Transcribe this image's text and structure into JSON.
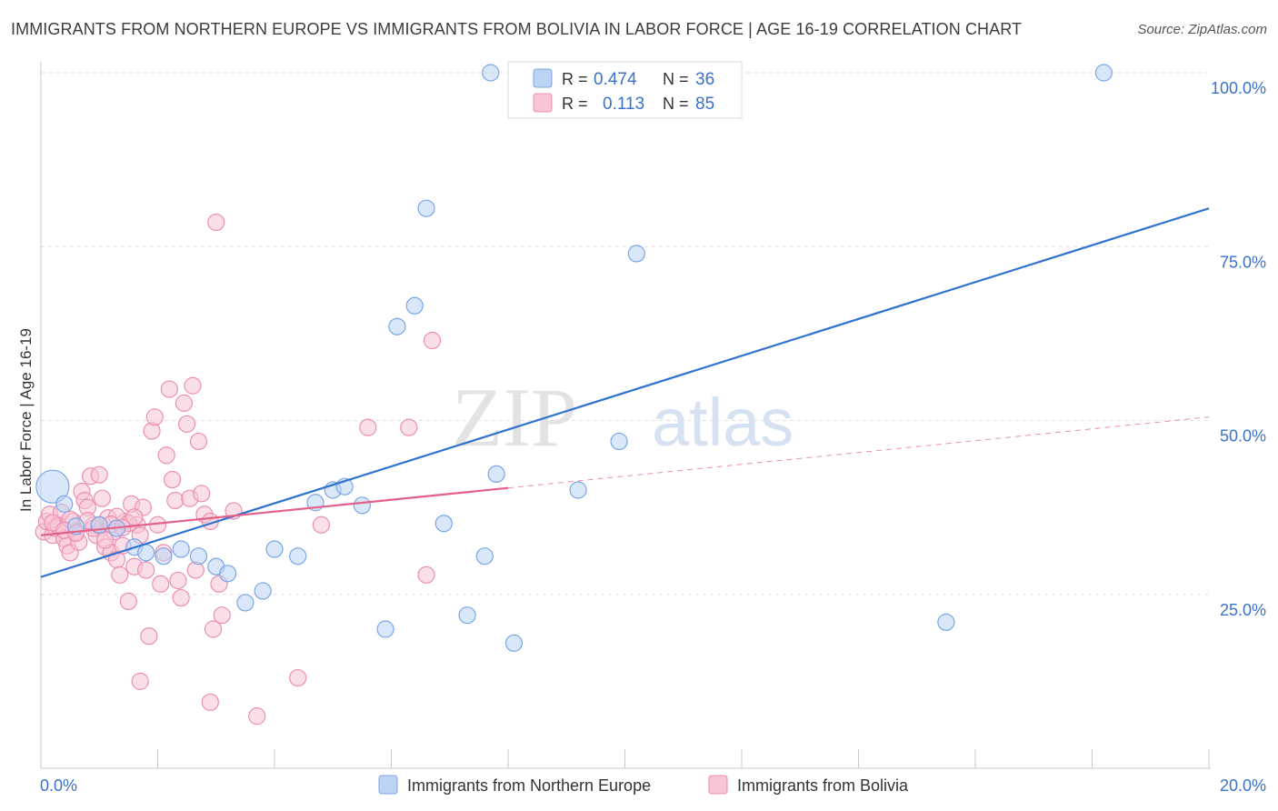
{
  "header": {
    "title": "IMMIGRANTS FROM NORTHERN EUROPE VS IMMIGRANTS FROM BOLIVIA IN LABOR FORCE | AGE 16-19 CORRELATION CHART",
    "source": "Source: ZipAtlas.com"
  },
  "watermark": {
    "part1": "ZIP",
    "part2": "atlas"
  },
  "colors": {
    "blue": "#7aa6e6",
    "blue_fill": "#bcd3f3",
    "blue_line": "#2f72d0",
    "pink": "#ec8fae",
    "pink_fill": "#f7c5d5",
    "pink_line": "#e2608a",
    "value_text": "#3a72c8"
  },
  "legend_top": {
    "r_label": "R =",
    "n_label": "N =",
    "rows": [
      {
        "r": "0.474",
        "n": "36"
      },
      {
        "r": "0.113",
        "n": "85"
      }
    ]
  },
  "chart_data": {
    "type": "scatter",
    "title": "IMMIGRANTS FROM NORTHERN EUROPE VS IMMIGRANTS FROM BOLIVIA IN LABOR FORCE | AGE 16-19 CORRELATION CHART",
    "xlabel": "",
    "ylabel": "In Labor Force | Age 16-19",
    "xlim": [
      0,
      20
    ],
    "ylim": [
      0,
      102
    ],
    "x_tick_labels": [
      "0.0%",
      "20.0%"
    ],
    "y_tick_labels": [
      "25.0%",
      "50.0%",
      "75.0%",
      "100.0%"
    ],
    "y_ticks": [
      25,
      50,
      75,
      100
    ],
    "grid": true,
    "legend": "bottom",
    "series": [
      {
        "name": "Immigrants from Northern Europe",
        "R": 0.474,
        "N": 36,
        "trend": {
          "x": [
            0,
            20
          ],
          "y": [
            27.5,
            80.5
          ]
        },
        "points": [
          {
            "x": 0.2,
            "y": 40.5,
            "big": true
          },
          {
            "x": 0.4,
            "y": 38.0
          },
          {
            "x": 1.0,
            "y": 35.0
          },
          {
            "x": 1.3,
            "y": 34.5
          },
          {
            "x": 0.6,
            "y": 34.8
          },
          {
            "x": 1.6,
            "y": 31.8
          },
          {
            "x": 1.8,
            "y": 31.0
          },
          {
            "x": 2.1,
            "y": 30.5
          },
          {
            "x": 2.4,
            "y": 31.5
          },
          {
            "x": 2.7,
            "y": 30.5
          },
          {
            "x": 3.0,
            "y": 29.0
          },
          {
            "x": 3.2,
            "y": 28.0
          },
          {
            "x": 3.5,
            "y": 23.8
          },
          {
            "x": 3.8,
            "y": 25.5
          },
          {
            "x": 4.0,
            "y": 31.5
          },
          {
            "x": 4.4,
            "y": 30.5
          },
          {
            "x": 4.7,
            "y": 38.2
          },
          {
            "x": 5.0,
            "y": 40.0
          },
          {
            "x": 5.2,
            "y": 40.5
          },
          {
            "x": 5.5,
            "y": 37.8
          },
          {
            "x": 5.9,
            "y": 20.0
          },
          {
            "x": 6.1,
            "y": 63.5
          },
          {
            "x": 6.4,
            "y": 66.5
          },
          {
            "x": 6.6,
            "y": 80.5
          },
          {
            "x": 6.9,
            "y": 35.2
          },
          {
            "x": 7.3,
            "y": 22.0
          },
          {
            "x": 7.6,
            "y": 30.5
          },
          {
            "x": 7.8,
            "y": 42.3
          },
          {
            "x": 8.1,
            "y": 18.0
          },
          {
            "x": 7.7,
            "y": 100.0
          },
          {
            "x": 9.2,
            "y": 40.0
          },
          {
            "x": 9.9,
            "y": 47.0
          },
          {
            "x": 10.2,
            "y": 74.0
          },
          {
            "x": 10.9,
            "y": 100.0
          },
          {
            "x": 15.5,
            "y": 21.0
          },
          {
            "x": 18.2,
            "y": 100.0
          }
        ]
      },
      {
        "name": "Immigrants from Bolivia",
        "R": 0.113,
        "N": 85,
        "trend": {
          "x": [
            0,
            8.0
          ],
          "y": [
            33.5,
            40.3
          ]
        },
        "trend_ext": {
          "x": [
            8.0,
            20
          ],
          "y": [
            40.3,
            50.5
          ]
        },
        "points": [
          {
            "x": 0.05,
            "y": 34.0
          },
          {
            "x": 0.1,
            "y": 35.5
          },
          {
            "x": 0.15,
            "y": 36.5
          },
          {
            "x": 0.2,
            "y": 33.5
          },
          {
            "x": 0.25,
            "y": 34.5
          },
          {
            "x": 0.3,
            "y": 35.0
          },
          {
            "x": 0.35,
            "y": 36.8
          },
          {
            "x": 0.4,
            "y": 33.0
          },
          {
            "x": 0.45,
            "y": 32.0
          },
          {
            "x": 0.5,
            "y": 31.0
          },
          {
            "x": 0.55,
            "y": 35.5
          },
          {
            "x": 0.6,
            "y": 34.0
          },
          {
            "x": 0.65,
            "y": 32.5
          },
          {
            "x": 0.7,
            "y": 39.8
          },
          {
            "x": 0.75,
            "y": 38.5
          },
          {
            "x": 0.8,
            "y": 37.5
          },
          {
            "x": 0.85,
            "y": 42.0
          },
          {
            "x": 0.9,
            "y": 35.0
          },
          {
            "x": 0.95,
            "y": 33.5
          },
          {
            "x": 1.0,
            "y": 42.2
          },
          {
            "x": 1.05,
            "y": 38.8
          },
          {
            "x": 1.1,
            "y": 31.8
          },
          {
            "x": 1.15,
            "y": 36.0
          },
          {
            "x": 1.2,
            "y": 31.0
          },
          {
            "x": 1.25,
            "y": 34.0
          },
          {
            "x": 1.3,
            "y": 30.0
          },
          {
            "x": 1.35,
            "y": 27.8
          },
          {
            "x": 1.4,
            "y": 32.0
          },
          {
            "x": 1.45,
            "y": 35.5
          },
          {
            "x": 1.5,
            "y": 24.0
          },
          {
            "x": 1.55,
            "y": 38.0
          },
          {
            "x": 1.6,
            "y": 29.0
          },
          {
            "x": 1.65,
            "y": 35.0
          },
          {
            "x": 1.7,
            "y": 33.5
          },
          {
            "x": 1.75,
            "y": 37.5
          },
          {
            "x": 1.8,
            "y": 28.5
          },
          {
            "x": 1.85,
            "y": 19.0
          },
          {
            "x": 1.9,
            "y": 48.5
          },
          {
            "x": 1.95,
            "y": 50.5
          },
          {
            "x": 2.0,
            "y": 35.0
          },
          {
            "x": 2.05,
            "y": 26.5
          },
          {
            "x": 2.1,
            "y": 31.0
          },
          {
            "x": 2.15,
            "y": 45.0
          },
          {
            "x": 2.2,
            "y": 54.5
          },
          {
            "x": 2.25,
            "y": 41.5
          },
          {
            "x": 2.3,
            "y": 38.5
          },
          {
            "x": 2.35,
            "y": 27.0
          },
          {
            "x": 2.4,
            "y": 24.5
          },
          {
            "x": 2.45,
            "y": 52.5
          },
          {
            "x": 2.5,
            "y": 49.5
          },
          {
            "x": 2.55,
            "y": 38.8
          },
          {
            "x": 2.6,
            "y": 55.0
          },
          {
            "x": 2.65,
            "y": 28.5
          },
          {
            "x": 2.7,
            "y": 47.0
          },
          {
            "x": 2.75,
            "y": 39.5
          },
          {
            "x": 2.8,
            "y": 36.5
          },
          {
            "x": 2.9,
            "y": 35.5
          },
          {
            "x": 2.95,
            "y": 20.0
          },
          {
            "x": 3.0,
            "y": 78.5
          },
          {
            "x": 3.05,
            "y": 26.5
          },
          {
            "x": 3.1,
            "y": 22.0
          },
          {
            "x": 3.3,
            "y": 37.0
          },
          {
            "x": 2.9,
            "y": 9.5
          },
          {
            "x": 3.7,
            "y": 7.5
          },
          {
            "x": 4.4,
            "y": 13.0
          },
          {
            "x": 4.8,
            "y": 35.0
          },
          {
            "x": 5.6,
            "y": 49.0
          },
          {
            "x": 6.3,
            "y": 49.0
          },
          {
            "x": 6.7,
            "y": 61.5
          },
          {
            "x": 6.6,
            "y": 27.8
          },
          {
            "x": 1.7,
            "y": 12.5
          },
          {
            "x": 0.3,
            "y": 34.8
          },
          {
            "x": 0.5,
            "y": 35.8
          },
          {
            "x": 0.9,
            "y": 34.5
          },
          {
            "x": 1.1,
            "y": 32.8
          },
          {
            "x": 1.3,
            "y": 36.2
          },
          {
            "x": 1.5,
            "y": 35.2
          },
          {
            "x": 0.2,
            "y": 35.3
          },
          {
            "x": 0.4,
            "y": 34.2
          },
          {
            "x": 0.6,
            "y": 33.8
          },
          {
            "x": 0.8,
            "y": 35.6
          },
          {
            "x": 1.0,
            "y": 34.9
          },
          {
            "x": 1.2,
            "y": 35.1
          },
          {
            "x": 1.4,
            "y": 34.6
          },
          {
            "x": 1.6,
            "y": 36.1
          }
        ]
      }
    ]
  }
}
